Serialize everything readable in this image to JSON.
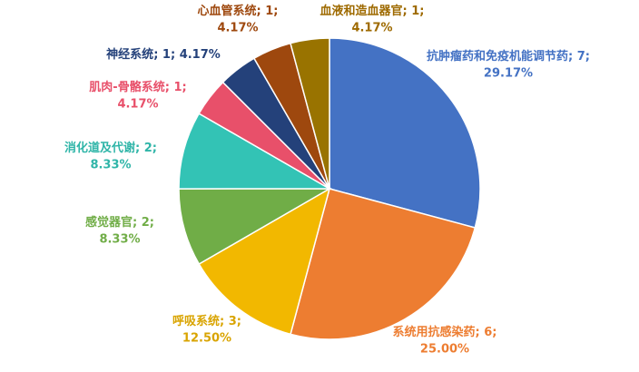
{
  "chart_data": {
    "type": "pie",
    "categories": [
      "抗肿瘤药和免疫机能调节药",
      "系统用抗感染药",
      "呼吸系统",
      "感觉器官",
      "消化道及代谢",
      "肌肉-骨骼系统",
      "神经系统",
      "心血管系统",
      "血液和造血器官"
    ],
    "counts": [
      7,
      6,
      3,
      2,
      2,
      1,
      1,
      1,
      1
    ],
    "values": [
      29.17,
      25.0,
      12.5,
      8.33,
      8.33,
      4.17,
      4.17,
      4.17,
      4.17
    ],
    "value_labels": [
      "29.17%",
      "25.00%",
      "12.50%",
      "8.33%",
      "8.33%",
      "4.17%",
      "4.17%",
      "4.17%",
      "4.17%"
    ],
    "label_separator": "; ",
    "colors": [
      "#4472c4",
      "#ed7d31",
      "#f2b800",
      "#70ad47",
      "#33c3b5",
      "#e8506a",
      "#24417a",
      "#9e480e",
      "#997300"
    ]
  }
}
